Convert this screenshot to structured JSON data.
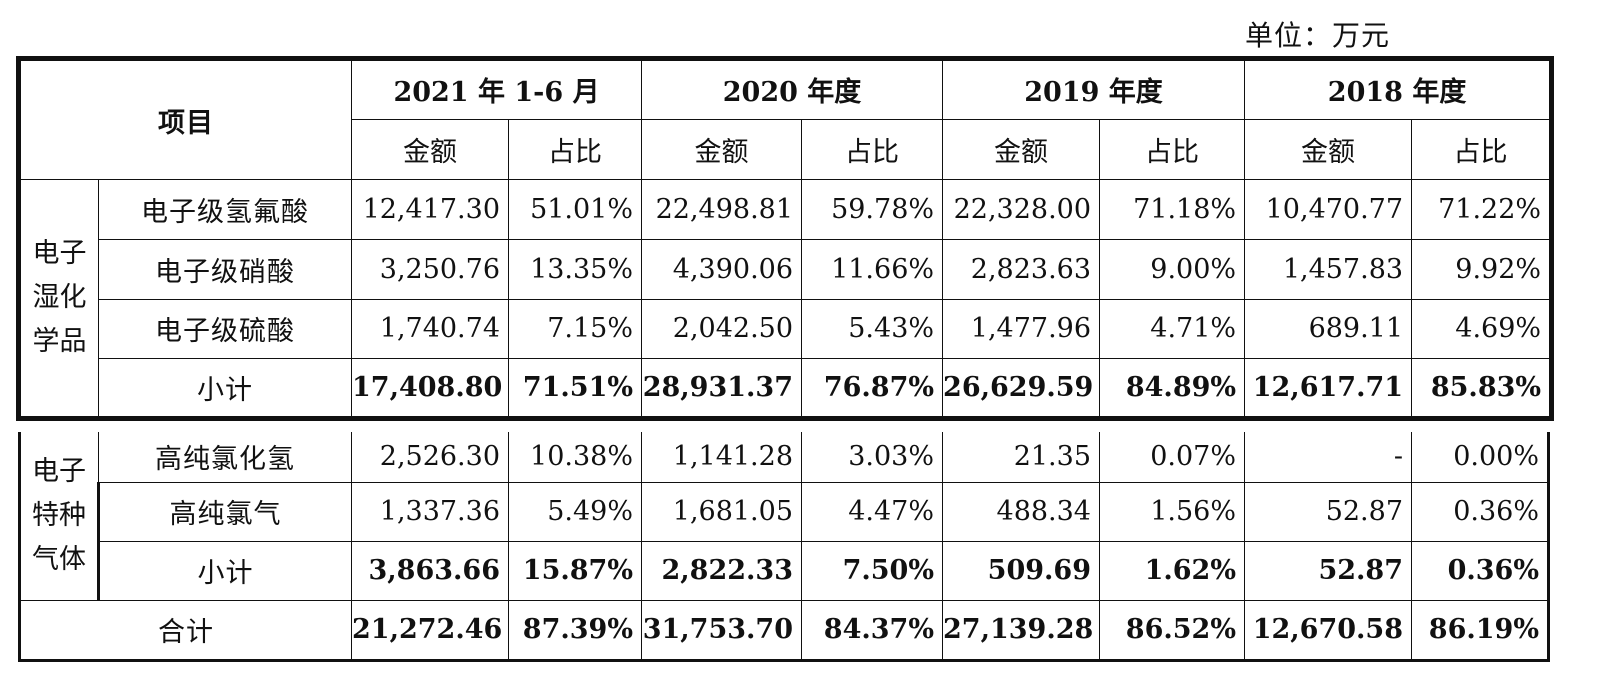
{
  "unit_label": "单位：万元",
  "header": {
    "item": "项目",
    "periods": [
      "2021 年 1-6 月",
      "2020 年度",
      "2019 年度",
      "2018 年度"
    ],
    "amount": "金额",
    "ratio": "占比"
  },
  "wet_chem": {
    "group_label": [
      "电子",
      "湿化",
      "学品"
    ],
    "rows": [
      {
        "name": "电子级氢氟酸",
        "v": [
          "12,417.30",
          "51.01%",
          "22,498.81",
          "59.78%",
          "22,328.00",
          "71.18%",
          "10,470.77",
          "71.22%"
        ]
      },
      {
        "name": "电子级硝酸",
        "v": [
          "3,250.76",
          "13.35%",
          "4,390.06",
          "11.66%",
          "2,823.63",
          "9.00%",
          "1,457.83",
          "9.92%"
        ]
      },
      {
        "name": "电子级硫酸",
        "v": [
          "1,740.74",
          "7.15%",
          "2,042.50",
          "5.43%",
          "1,477.96",
          "4.71%",
          "689.11",
          "4.69%"
        ]
      }
    ],
    "subtotal": {
      "name": "小计",
      "v": [
        "17,408.80",
        "71.51%",
        "28,931.37",
        "76.87%",
        "26,629.59",
        "84.89%",
        "12,617.71",
        "85.83%"
      ]
    }
  },
  "gas": {
    "group_label": [
      "电子",
      "特种",
      "气体"
    ],
    "rows": [
      {
        "name": "高纯氯化氢",
        "v": [
          "2,526.30",
          "10.38%",
          "1,141.28",
          "3.03%",
          "21.35",
          "0.07%",
          "-",
          "0.00%"
        ]
      },
      {
        "name": "高纯氯气",
        "v": [
          "1,337.36",
          "5.49%",
          "1,681.05",
          "4.47%",
          "488.34",
          "1.56%",
          "52.87",
          "0.36%"
        ]
      }
    ],
    "subtotal": {
      "name": "小计",
      "v": [
        "3,863.66",
        "15.87%",
        "2,822.33",
        "7.50%",
        "509.69",
        "1.62%",
        "52.87",
        "0.36%"
      ]
    }
  },
  "total": {
    "name": "合计",
    "v": [
      "21,272.46",
      "87.39%",
      "31,753.70",
      "84.37%",
      "27,139.28",
      "86.52%",
      "12,670.58",
      "86.19%"
    ]
  }
}
